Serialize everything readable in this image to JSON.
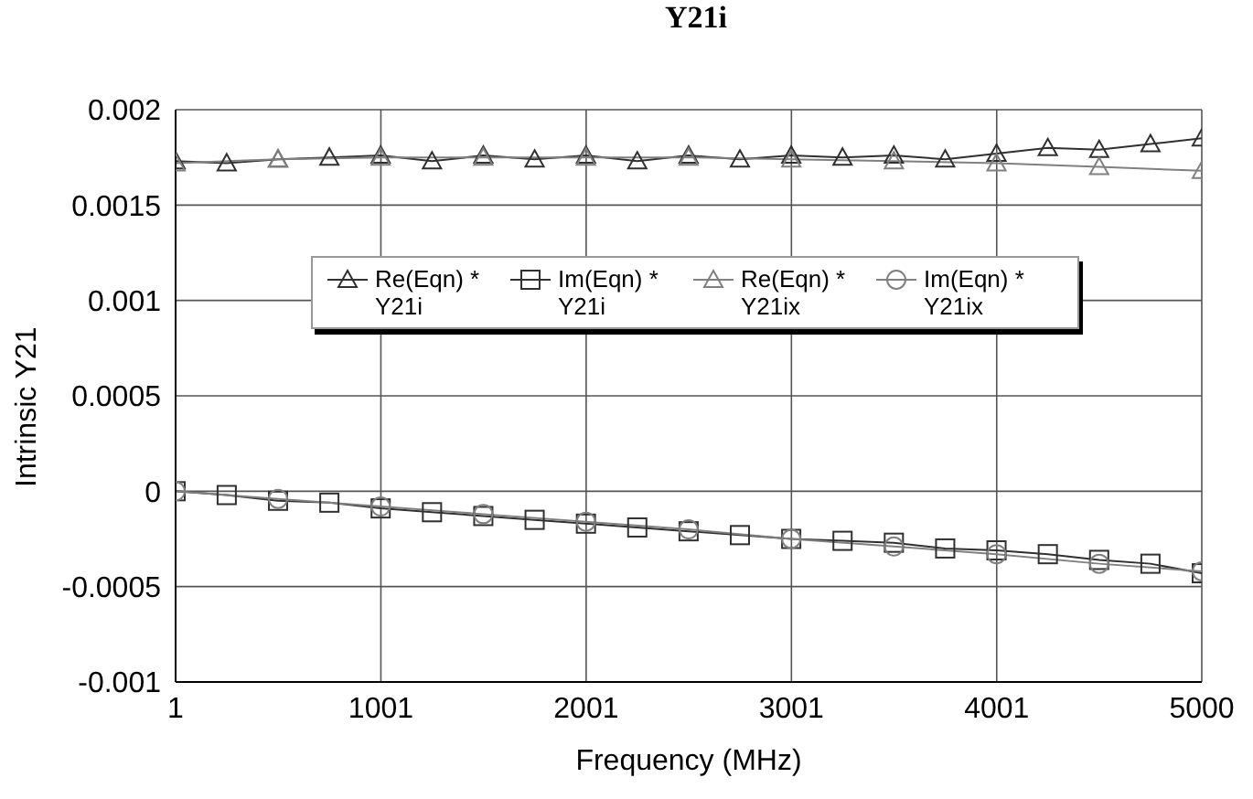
{
  "chart_data": {
    "type": "line",
    "title": "Y21i",
    "xlabel": "Frequency (MHz)",
    "ylabel": "Intrinsic Y21",
    "xlim": [
      1,
      5000
    ],
    "xticks": [
      1,
      1001,
      2001,
      3001,
      4001,
      5000
    ],
    "ylim": [
      -0.001,
      0.002
    ],
    "yticks": [
      -0.001,
      -0.0005,
      0,
      0.0005,
      0.001,
      0.0015,
      0.002
    ],
    "grid": true,
    "legend": "top",
    "line_style": "solid",
    "series": [
      {
        "name": "Re(Eqn) * Y21i",
        "color": "#303030",
        "marker": "triangle",
        "x": [
          1,
          250,
          500,
          750,
          1000,
          1250,
          1500,
          1750,
          2000,
          2250,
          2500,
          2750,
          3000,
          3250,
          3500,
          3750,
          4000,
          4250,
          4500,
          4750,
          5000
        ],
        "values": [
          0.00173,
          0.00172,
          0.00174,
          0.00175,
          0.00176,
          0.00173,
          0.00176,
          0.00174,
          0.00176,
          0.00173,
          0.00176,
          0.00174,
          0.00176,
          0.00175,
          0.00176,
          0.00174,
          0.00177,
          0.0018,
          0.00179,
          0.00182,
          0.00185
        ]
      },
      {
        "name": "Im(Eqn) * Y21i",
        "color": "#303030",
        "marker": "square",
        "x": [
          1,
          250,
          500,
          750,
          1000,
          1250,
          1500,
          1750,
          2000,
          2250,
          2500,
          2750,
          3000,
          3250,
          3500,
          3750,
          4000,
          4250,
          4500,
          4750,
          5000
        ],
        "values": [
          0,
          -2e-05,
          -5e-05,
          -6e-05,
          -9e-05,
          -0.00011,
          -0.00013,
          -0.00015,
          -0.00017,
          -0.00019,
          -0.00021,
          -0.00023,
          -0.00025,
          -0.00026,
          -0.00027,
          -0.0003,
          -0.00031,
          -0.00033,
          -0.00036,
          -0.00038,
          -0.00043
        ]
      },
      {
        "name": "Re(Eqn) * Y21ix",
        "color": "#808080",
        "marker": "triangle",
        "x": [
          1,
          500,
          1000,
          1500,
          2000,
          2500,
          3000,
          3500,
          4000,
          4500,
          5000
        ],
        "values": [
          0.00172,
          0.00174,
          0.00175,
          0.00175,
          0.00175,
          0.00175,
          0.00174,
          0.00173,
          0.00172,
          0.0017,
          0.00168
        ]
      },
      {
        "name": "Im(Eqn) * Y21ix",
        "color": "#808080",
        "marker": "circle",
        "x": [
          1,
          500,
          1000,
          1500,
          2000,
          2500,
          3000,
          3500,
          4000,
          4500,
          5000
        ],
        "values": [
          0,
          -4e-05,
          -8e-05,
          -0.00012,
          -0.00016,
          -0.0002,
          -0.00025,
          -0.00029,
          -0.00033,
          -0.00038,
          -0.00042
        ]
      }
    ]
  }
}
